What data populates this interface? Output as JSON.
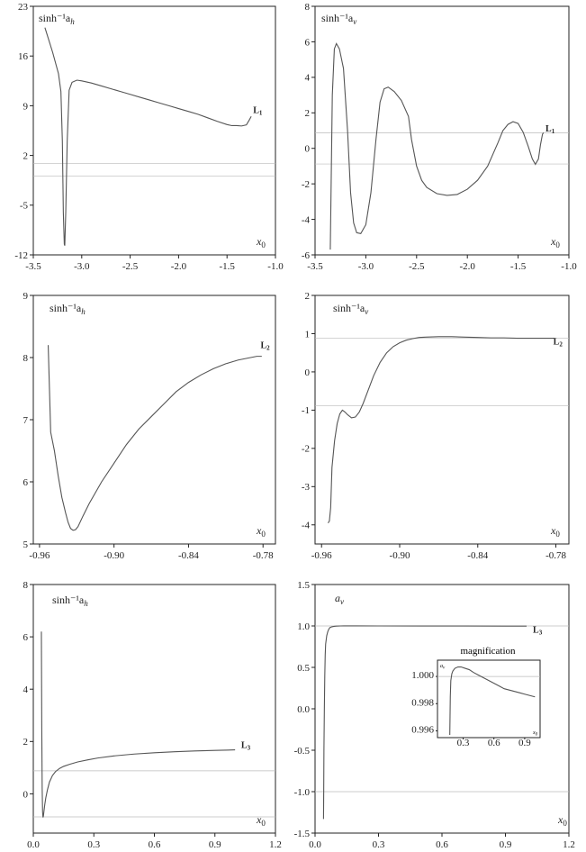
{
  "chart_data": [
    {
      "id": "p1",
      "type": "line",
      "ylabel": "sinh⁻¹a",
      "ylabel_sub": "h",
      "xlabel": "x",
      "xlabel_sub": "0",
      "xlim": [
        -3.5,
        -1.0
      ],
      "ylim": [
        -12,
        23
      ],
      "xticks": [
        -3.5,
        -3.0,
        -2.5,
        -2.0,
        -1.5,
        -1.0
      ],
      "xtick_labels": [
        "-3.5",
        "-3.0",
        "-2.5",
        "-2.0",
        "-1.5",
        "-1.0"
      ],
      "yticks": [
        -12,
        -5,
        2,
        9,
        16,
        23
      ],
      "ytick_labels": [
        "-12",
        "-5",
        "2",
        "9",
        "16",
        "23"
      ],
      "ref_lines": [
        0.88,
        -0.88
      ],
      "point_label": "L",
      "point_label_sub": "1",
      "point_label_at": [
        -1.23,
        8.0
      ],
      "x": [
        -3.38,
        -3.3,
        -3.24,
        -3.215,
        -3.2,
        -3.19,
        -3.18,
        -3.175,
        -3.165,
        -3.15,
        -3.13,
        -3.1,
        -3.05,
        -3.0,
        -2.9,
        -2.8,
        -2.7,
        -2.6,
        -2.5,
        -2.4,
        -2.3,
        -2.2,
        -2.1,
        -2.0,
        -1.9,
        -1.8,
        -1.7,
        -1.6,
        -1.5,
        -1.45,
        -1.4,
        -1.35,
        -1.3,
        -1.27,
        -1.25
      ],
      "y": [
        20.0,
        16.5,
        13.5,
        11.0,
        4.0,
        -6.0,
        -10.5,
        -10.7,
        -6.0,
        4.0,
        11.2,
        12.3,
        12.6,
        12.5,
        12.2,
        11.8,
        11.4,
        11.0,
        10.6,
        10.2,
        9.8,
        9.4,
        9.0,
        8.6,
        8.2,
        7.8,
        7.3,
        6.8,
        6.35,
        6.2,
        6.2,
        6.15,
        6.3,
        7.0,
        7.5
      ]
    },
    {
      "id": "p2",
      "type": "line",
      "ylabel": "sinh⁻¹a",
      "ylabel_sub": "v",
      "xlabel": "x",
      "xlabel_sub": "0",
      "xlim": [
        -3.5,
        -1.0
      ],
      "ylim": [
        -6,
        8
      ],
      "xticks": [
        -3.5,
        -3.0,
        -2.5,
        -2.0,
        -1.5,
        -1.0
      ],
      "xtick_labels": [
        "-3.5",
        "-3.0",
        "-2.5",
        "-2.0",
        "-1.5",
        "-1.0"
      ],
      "yticks": [
        -6,
        -4,
        -2,
        0,
        2,
        4,
        6,
        8
      ],
      "ytick_labels": [
        "-6",
        "-4",
        "-2",
        "0",
        "2",
        "4",
        "6",
        "8"
      ],
      "ref_lines": [
        0.88,
        -0.88
      ],
      "point_label": "L",
      "point_label_sub": "1",
      "point_label_at": [
        -1.23,
        0.95
      ],
      "x": [
        -3.35,
        -3.33,
        -3.31,
        -3.29,
        -3.26,
        -3.22,
        -3.18,
        -3.15,
        -3.12,
        -3.09,
        -3.05,
        -3.0,
        -2.95,
        -2.9,
        -2.86,
        -2.82,
        -2.78,
        -2.72,
        -2.65,
        -2.58,
        -2.55,
        -2.5,
        -2.45,
        -2.4,
        -2.3,
        -2.2,
        -2.1,
        -2.0,
        -1.9,
        -1.8,
        -1.7,
        -1.65,
        -1.6,
        -1.55,
        -1.5,
        -1.45,
        -1.4,
        -1.36,
        -1.33,
        -1.3,
        -1.28,
        -1.26,
        -1.25
      ],
      "y": [
        -5.7,
        3.0,
        5.6,
        5.9,
        5.6,
        4.5,
        1.0,
        -2.5,
        -4.2,
        -4.75,
        -4.8,
        -4.3,
        -2.5,
        0.5,
        2.6,
        3.35,
        3.45,
        3.2,
        2.7,
        1.8,
        0.5,
        -1.0,
        -1.8,
        -2.2,
        -2.55,
        -2.65,
        -2.6,
        -2.3,
        -1.8,
        -1.0,
        0.3,
        1.0,
        1.35,
        1.5,
        1.4,
        0.9,
        0.1,
        -0.6,
        -0.9,
        -0.6,
        0.2,
        0.8,
        0.88
      ]
    },
    {
      "id": "p3",
      "type": "line",
      "ylabel": "sinh⁻¹a",
      "ylabel_sub": "h",
      "xlabel": "x",
      "xlabel_sub": "0",
      "xlim": [
        -0.965,
        -0.77
      ],
      "ylim": [
        5,
        9
      ],
      "xticks": [
        -0.96,
        -0.9,
        -0.84,
        -0.78
      ],
      "xtick_labels": [
        "-0.96",
        "-0.90",
        "-0.84",
        "-0.78"
      ],
      "yticks": [
        5,
        6,
        7,
        8,
        9
      ],
      "ytick_labels": [
        "5",
        "6",
        "7",
        "8",
        "9"
      ],
      "ref_lines": [],
      "point_label": "L",
      "point_label_sub": "2",
      "point_label_at": [
        -0.782,
        8.15
      ],
      "x": [
        -0.953,
        -0.952,
        -0.951,
        -0.948,
        -0.945,
        -0.942,
        -0.939,
        -0.937,
        -0.935,
        -0.933,
        -0.931,
        -0.929,
        -0.925,
        -0.92,
        -0.91,
        -0.9,
        -0.89,
        -0.88,
        -0.87,
        -0.86,
        -0.85,
        -0.84,
        -0.83,
        -0.82,
        -0.81,
        -0.8,
        -0.79,
        -0.785,
        -0.781
      ],
      "y": [
        8.2,
        7.5,
        6.8,
        6.5,
        6.1,
        5.75,
        5.5,
        5.35,
        5.25,
        5.22,
        5.23,
        5.28,
        5.45,
        5.65,
        6.0,
        6.3,
        6.6,
        6.85,
        7.05,
        7.25,
        7.45,
        7.6,
        7.72,
        7.82,
        7.9,
        7.96,
        8.0,
        8.02,
        8.02
      ]
    },
    {
      "id": "p4",
      "type": "line",
      "ylabel": "sinh⁻¹a",
      "ylabel_sub": "v",
      "xlabel": "x",
      "xlabel_sub": "0",
      "xlim": [
        -0.965,
        -0.77
      ],
      "ylim": [
        -4.5,
        2
      ],
      "xticks": [
        -0.96,
        -0.9,
        -0.84,
        -0.78
      ],
      "xtick_labels": [
        "-0.96",
        "-0.90",
        "-0.84",
        "-0.78"
      ],
      "yticks": [
        -4,
        -3,
        -2,
        -1,
        0,
        1,
        2
      ],
      "ytick_labels": [
        "-4",
        "-3",
        "-2",
        "-1",
        "0",
        "1",
        "2"
      ],
      "ref_lines": [
        0.88,
        -0.88
      ],
      "point_label": "L",
      "point_label_sub": "2",
      "point_label_at": [
        -0.782,
        0.72
      ],
      "x": [
        -0.955,
        -0.954,
        -0.953,
        -0.952,
        -0.95,
        -0.948,
        -0.946,
        -0.944,
        -0.942,
        -0.94,
        -0.937,
        -0.934,
        -0.931,
        -0.928,
        -0.925,
        -0.92,
        -0.915,
        -0.91,
        -0.905,
        -0.9,
        -0.895,
        -0.89,
        -0.885,
        -0.88,
        -0.87,
        -0.86,
        -0.85,
        -0.84,
        -0.83,
        -0.82,
        -0.81,
        -0.8,
        -0.79,
        -0.781
      ],
      "y": [
        -3.95,
        -3.9,
        -3.55,
        -2.5,
        -1.8,
        -1.35,
        -1.1,
        -1.0,
        -1.05,
        -1.12,
        -1.2,
        -1.18,
        -1.05,
        -0.82,
        -0.55,
        -0.1,
        0.25,
        0.5,
        0.66,
        0.76,
        0.83,
        0.87,
        0.9,
        0.91,
        0.92,
        0.92,
        0.91,
        0.9,
        0.89,
        0.89,
        0.88,
        0.88,
        0.88,
        0.88
      ]
    },
    {
      "id": "p5",
      "type": "line",
      "ylabel": "sinh⁻¹a",
      "ylabel_sub": "h",
      "xlabel": "x",
      "xlabel_sub": "0",
      "xlim": [
        0.0,
        1.2
      ],
      "ylim": [
        -1.5,
        8
      ],
      "xticks": [
        0.0,
        0.3,
        0.6,
        0.9,
        1.2
      ],
      "xtick_labels": [
        "0.0",
        "0.3",
        "0.6",
        "0.9",
        "1.2"
      ],
      "yticks": [
        0,
        2,
        4,
        6,
        8
      ],
      "ytick_labels": [
        "0",
        "2",
        "4",
        "6",
        "8"
      ],
      "ref_lines": [
        0.88,
        -0.88
      ],
      "point_label": "L",
      "point_label_sub": "3",
      "point_label_at": [
        1.03,
        1.75
      ],
      "x": [
        0.04,
        0.042,
        0.044,
        0.046,
        0.048,
        0.05,
        0.053,
        0.057,
        0.062,
        0.07,
        0.08,
        0.095,
        0.11,
        0.13,
        0.15,
        0.18,
        0.22,
        0.27,
        0.32,
        0.4,
        0.5,
        0.6,
        0.7,
        0.8,
        0.9,
        1.0
      ],
      "y": [
        6.2,
        2.5,
        0.2,
        -0.7,
        -0.9,
        -0.85,
        -0.65,
        -0.4,
        -0.15,
        0.15,
        0.45,
        0.7,
        0.85,
        0.97,
        1.05,
        1.13,
        1.22,
        1.3,
        1.37,
        1.45,
        1.52,
        1.57,
        1.61,
        1.64,
        1.66,
        1.68
      ]
    },
    {
      "id": "p6",
      "type": "line",
      "ylabel": "a",
      "ylabel_sub": "v",
      "xlabel": "x",
      "xlabel_sub": "0",
      "xlim": [
        0.0,
        1.2
      ],
      "ylim": [
        -1.5,
        1.5
      ],
      "xticks": [
        0.0,
        0.3,
        0.6,
        0.9,
        1.2
      ],
      "xtick_labels": [
        "0.0",
        "0.3",
        "0.6",
        "0.9",
        "1.2"
      ],
      "yticks": [
        -1.5,
        -1.0,
        -0.5,
        0.0,
        0.5,
        1.0,
        1.5
      ],
      "ytick_labels": [
        "-1.5",
        "-1.0",
        "-0.5",
        "0.0",
        "0.5",
        "1.0",
        "1.5"
      ],
      "ref_lines": [
        1.0,
        -1.0
      ],
      "point_label": "L",
      "point_label_sub": "3",
      "point_label_at": [
        1.03,
        0.92
      ],
      "x": [
        0.04,
        0.041,
        0.042,
        0.044,
        0.046,
        0.048,
        0.05,
        0.055,
        0.06,
        0.065,
        0.07,
        0.08,
        0.09,
        0.1,
        0.12,
        0.15,
        0.2,
        0.3,
        0.5,
        0.7,
        0.9,
        1.0
      ],
      "y": [
        -1.33,
        -1.0,
        -0.5,
        0.0,
        0.4,
        0.65,
        0.78,
        0.88,
        0.93,
        0.96,
        0.98,
        0.99,
        0.995,
        0.998,
        1.0,
        1.001,
        1.001,
        1.0,
        0.999,
        0.9988,
        0.9983,
        0.998
      ]
    }
  ],
  "inset": {
    "title": "magnification",
    "ylabel": "a",
    "ylabel_sub": "v",
    "xlabel": "x",
    "xlabel_sub": "0",
    "xlim": [
      0.05,
      1.05
    ],
    "ylim": [
      0.9955,
      1.0012
    ],
    "xticks": [
      0.3,
      0.6,
      0.9
    ],
    "xtick_labels": [
      "0.3",
      "0.6",
      "0.9"
    ],
    "yticks": [
      0.996,
      0.998,
      1.0
    ],
    "ytick_labels": [
      "0.996",
      "0.998",
      "1.000"
    ],
    "ref_lines": [
      1.0
    ],
    "x": [
      0.17,
      0.175,
      0.18,
      0.19,
      0.2,
      0.22,
      0.25,
      0.28,
      0.32,
      0.36,
      0.4,
      0.45,
      0.5,
      0.55,
      0.6,
      0.65,
      0.7,
      0.75,
      0.8,
      0.85,
      0.9,
      0.95,
      1.0
    ],
    "y": [
      0.9957,
      0.9985,
      0.9997,
      1.0002,
      1.0004,
      1.0006,
      1.0007,
      1.0007,
      1.0006,
      1.0005,
      1.0003,
      1.0001,
      0.9999,
      0.9997,
      0.9995,
      0.9993,
      0.9991,
      0.999,
      0.9989,
      0.9988,
      0.9987,
      0.9986,
      0.9985
    ]
  }
}
